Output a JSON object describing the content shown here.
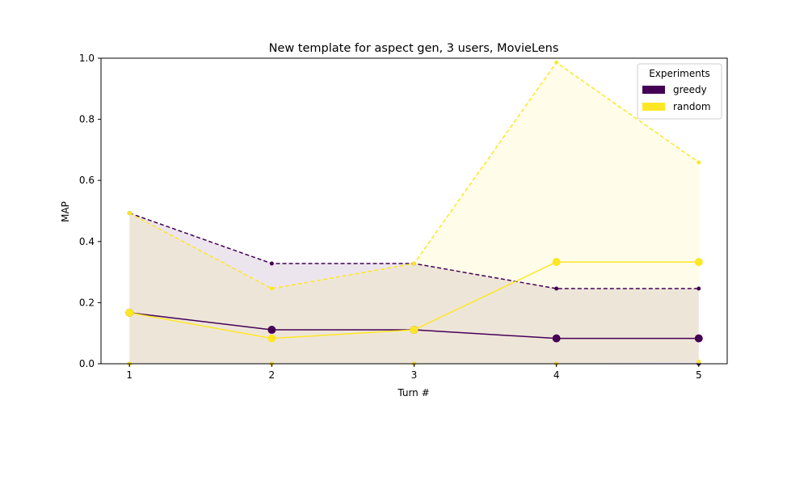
{
  "chart_data": {
    "type": "line",
    "title": "New template for aspect gen, 3 users, MovieLens",
    "xlabel": "Turn #",
    "ylabel": "MAP",
    "x": [
      1,
      2,
      3,
      4,
      5
    ],
    "xticks": [
      "1",
      "2",
      "3",
      "4",
      "5"
    ],
    "yticks": [
      "0.0",
      "0.2",
      "0.4",
      "0.6",
      "0.8",
      "1.0"
    ],
    "ylim": [
      0,
      1
    ],
    "grid": false,
    "legend": {
      "title": "Experiments",
      "placement": "top-right",
      "entries": [
        "greedy",
        "random"
      ]
    },
    "series": [
      {
        "name": "greedy",
        "color": "#440154",
        "mean": [
          0.167,
          0.111,
          0.111,
          0.083,
          0.083
        ],
        "upper": [
          0.493,
          0.328,
          0.328,
          0.246,
          0.246
        ],
        "lower": [
          0.0,
          0.0,
          0.0,
          0.0,
          0.0
        ]
      },
      {
        "name": "random",
        "color": "#fde725",
        "mean": [
          0.167,
          0.083,
          0.111,
          0.333,
          0.333
        ],
        "upper": [
          0.493,
          0.246,
          0.328,
          0.986,
          0.659
        ],
        "lower": [
          0.0,
          0.0,
          0.0,
          0.0,
          0.007
        ]
      }
    ]
  }
}
